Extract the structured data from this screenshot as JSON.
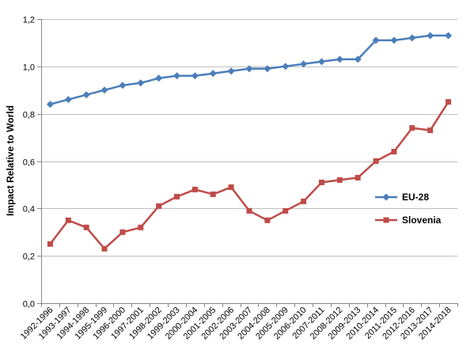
{
  "chart_data": {
    "type": "line",
    "title": "",
    "xlabel": "",
    "ylabel": "Impact Relative to World",
    "ylim": [
      0,
      1.2
    ],
    "yticks": [
      "0,0",
      "0,2",
      "0,4",
      "0,6",
      "0,8",
      "1,0",
      "1,2"
    ],
    "grid": "horizontal",
    "legend_position": "right",
    "categories": [
      "1992-1996",
      "1993-1997",
      "1994-1998",
      "1995-1999",
      "1996-2000",
      "1997-2001",
      "1998-2002",
      "1999-2003",
      "2000-2004",
      "2001-2005",
      "2002-2006",
      "2003-2007",
      "2004-2008",
      "2005-2009",
      "2006-2010",
      "2007-2011",
      "2008-2012",
      "2009-2013",
      "2010-2014",
      "2011-2015",
      "2012-2016",
      "2013-2017",
      "2014-2018"
    ],
    "series": [
      {
        "name": "EU-28",
        "color": "#4a7ebb",
        "marker": "diamond",
        "values": [
          0.84,
          0.86,
          0.88,
          0.9,
          0.92,
          0.93,
          0.95,
          0.96,
          0.96,
          0.97,
          0.98,
          0.99,
          0.99,
          1.0,
          1.01,
          1.02,
          1.03,
          1.03,
          1.11,
          1.11,
          1.12,
          1.13,
          1.13
        ]
      },
      {
        "name": "Slovenia",
        "color": "#be4b48",
        "marker": "square",
        "values": [
          0.25,
          0.35,
          0.32,
          0.23,
          0.3,
          0.32,
          0.41,
          0.45,
          0.48,
          0.46,
          0.49,
          0.39,
          0.35,
          0.39,
          0.43,
          0.51,
          0.52,
          0.53,
          0.6,
          0.64,
          0.74,
          0.73,
          0.85
        ]
      }
    ]
  }
}
